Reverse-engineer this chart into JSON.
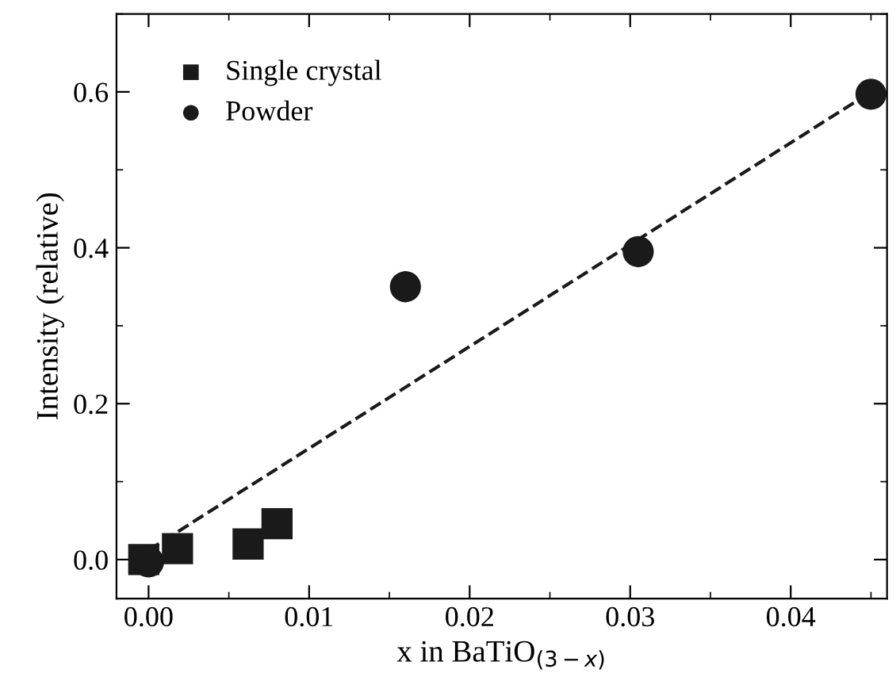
{
  "chart_data": {
    "type": "scatter",
    "xlabel": "x in BaTiO$_{(3−x)}$",
    "ylabel": "Intensity (relative)",
    "xlim": [
      -0.002,
      0.046
    ],
    "xticks": [
      {
        "value": 0.0,
        "label": "0.00"
      },
      {
        "value": 0.01,
        "label": "0.01"
      },
      {
        "value": 0.02,
        "label": "0.02"
      },
      {
        "value": 0.03,
        "label": "0.03"
      },
      {
        "value": 0.04,
        "label": "0.04"
      }
    ],
    "ylim": [
      -0.05,
      0.7
    ],
    "yticks": [
      {
        "value": 0.0,
        "label": "0.0"
      },
      {
        "value": 0.2,
        "label": "0.2"
      },
      {
        "value": 0.4,
        "label": "0.4"
      },
      {
        "value": 0.6,
        "label": "0.6"
      }
    ],
    "grid": false,
    "legend": "top left",
    "series": [
      {
        "name": "Single crystal",
        "color": "#1a1a1a",
        "marker": "square",
        "x": [
          -0.0003,
          0.0018,
          0.0062,
          0.008
        ],
        "values": [
          0.0,
          0.014,
          0.02,
          0.046
        ]
      },
      {
        "name": "Powder",
        "color": "#1a1a1a",
        "marker": "circle",
        "x": [
          0.0,
          0.016,
          0.0305,
          0.045
        ],
        "values": [
          -0.003,
          0.35,
          0.395,
          0.597
        ]
      },
      {
        "type": "line",
        "color": "#1a1a1a",
        "line_style": "dashed",
        "marker": "none",
        "x": [
          0.0,
          0.045
        ],
        "values": [
          0.012,
          0.6
        ]
      }
    ]
  }
}
